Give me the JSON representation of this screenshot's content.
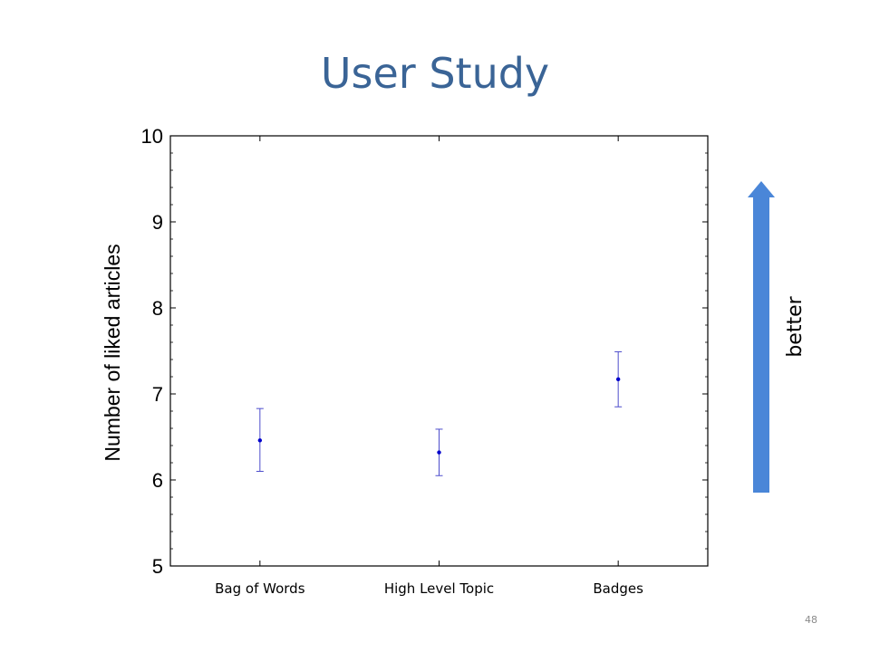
{
  "slide": {
    "title": "User Study",
    "page_number": "48"
  },
  "annotation": {
    "label": "better",
    "arrow_color": "#4a86d8"
  },
  "colors": {
    "title": "#3a6496",
    "series": "#0000cc",
    "errorbar": "#4d4dcc"
  },
  "chart_data": {
    "type": "scatter",
    "title": "",
    "xlabel": "",
    "ylabel": "Number of liked articles",
    "categories": [
      "Bag of Words",
      "High Level Topic",
      "Badges"
    ],
    "series": [
      {
        "values": [
          6.46,
          6.32,
          7.17
        ],
        "lower": [
          6.1,
          6.05,
          6.85
        ],
        "upper": [
          6.83,
          6.59,
          7.49
        ]
      }
    ],
    "ylim": [
      5,
      10
    ],
    "yticks": [
      5,
      6,
      7,
      8,
      9,
      10
    ],
    "grid": false,
    "legend": "none"
  }
}
